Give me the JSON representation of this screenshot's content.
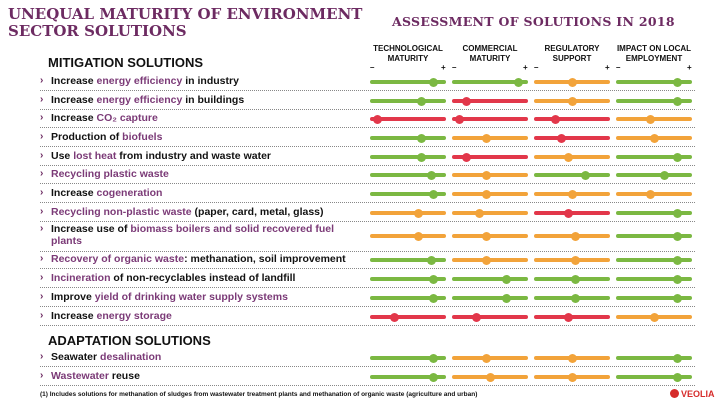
{
  "header": {
    "title": "UNEQUAL MATURITY OF ENVIRONMENT SECTOR SOLUTIONS",
    "assessment": "ASSESSMENT OF SOLUTIONS IN 2018"
  },
  "columns": [
    {
      "label": "TECHNOLOGICAL MATURITY"
    },
    {
      "label": "COMMERCIAL MATURITY"
    },
    {
      "label": "REGULATORY SUPPORT"
    },
    {
      "label": "IMPACT ON LOCAL EMPLOYMENT"
    }
  ],
  "scale": {
    "minus": "–",
    "plus": "+"
  },
  "colors": {
    "green": "#7bb842",
    "orange": "#f2a33a",
    "red": "#e2374a",
    "purple": "#6d2b62"
  },
  "mitigation": {
    "title": "MITIGATION SOLUTIONS",
    "rows": [
      {
        "pre": "Increase ",
        "hl": "energy efficiency",
        "post": " in industry",
        "ratings": [
          [
            "green",
            0.88
          ],
          [
            "green",
            0.92
          ],
          [
            "orange",
            0.5
          ],
          [
            "green",
            0.85
          ]
        ]
      },
      {
        "pre": "Increase ",
        "hl": "energy efficiency",
        "post": " in buildings",
        "ratings": [
          [
            "green",
            0.7
          ],
          [
            "red",
            0.15
          ],
          [
            "orange",
            0.5
          ],
          [
            "green",
            0.85
          ]
        ]
      },
      {
        "pre": "Increase ",
        "hl": "CO₂ capture",
        "post": "",
        "ratings": [
          [
            "red",
            0.05
          ],
          [
            "red",
            0.05
          ],
          [
            "red",
            0.25
          ],
          [
            "orange",
            0.45
          ]
        ]
      },
      {
        "pre": "Production of ",
        "hl": "biofuels",
        "post": "",
        "ratings": [
          [
            "green",
            0.7
          ],
          [
            "orange",
            0.45
          ],
          [
            "red",
            0.35
          ],
          [
            "orange",
            0.5
          ]
        ]
      },
      {
        "pre": "Use ",
        "hl": "lost heat",
        "post": " from industry and waste water",
        "ratings": [
          [
            "green",
            0.7
          ],
          [
            "red",
            0.15
          ],
          [
            "orange",
            0.45
          ],
          [
            "green",
            0.85
          ]
        ]
      },
      {
        "pre": "",
        "hl": "Recycling plastic waste",
        "post": "",
        "ratings": [
          [
            "green",
            0.85
          ],
          [
            "orange",
            0.45
          ],
          [
            "green",
            0.7
          ],
          [
            "green",
            0.65
          ]
        ]
      },
      {
        "pre": "Increase ",
        "hl": "cogeneration",
        "post": "",
        "ratings": [
          [
            "green",
            0.88
          ],
          [
            "orange",
            0.45
          ],
          [
            "orange",
            0.5
          ],
          [
            "orange",
            0.45
          ]
        ]
      },
      {
        "pre": "",
        "hl": "Recycling non-plastic waste",
        "post": " (paper, card, metal, glass)",
        "ratings": [
          [
            "orange",
            0.65
          ],
          [
            "orange",
            0.35
          ],
          [
            "red",
            0.45
          ],
          [
            "green",
            0.85
          ]
        ]
      },
      {
        "pre": "Increase use of ",
        "hl": "biomass boilers and solid recovered fuel plants",
        "post": "",
        "ratings": [
          [
            "orange",
            0.65
          ],
          [
            "orange",
            0.45
          ],
          [
            "orange",
            0.55
          ],
          [
            "green",
            0.85
          ]
        ]
      },
      {
        "pre": "",
        "hl": "Recovery of organic waste",
        "post": ": methanation, soil improvement",
        "ratings": [
          [
            "green",
            0.85
          ],
          [
            "orange",
            0.45
          ],
          [
            "orange",
            0.55
          ],
          [
            "green",
            0.85
          ]
        ]
      },
      {
        "pre": "",
        "hl": "Incineration",
        "post": " of non-recyclables instead of landfill",
        "ratings": [
          [
            "green",
            0.88
          ],
          [
            "green",
            0.75
          ],
          [
            "green",
            0.55
          ],
          [
            "green",
            0.85
          ]
        ]
      },
      {
        "pre": "Improve ",
        "hl": "yield of drinking water supply systems",
        "post": "",
        "ratings": [
          [
            "green",
            0.88
          ],
          [
            "green",
            0.75
          ],
          [
            "green",
            0.55
          ],
          [
            "green",
            0.85
          ]
        ]
      },
      {
        "pre": "Increase ",
        "hl": "energy storage",
        "post": "",
        "ratings": [
          [
            "red",
            0.3
          ],
          [
            "red",
            0.3
          ],
          [
            "red",
            0.45
          ],
          [
            "orange",
            0.5
          ]
        ]
      }
    ]
  },
  "adaptation": {
    "title": "ADAPTATION SOLUTIONS",
    "rows": [
      {
        "pre": "Seawater ",
        "hl": "desalination",
        "post": "",
        "ratings": [
          [
            "green",
            0.88
          ],
          [
            "orange",
            0.45
          ],
          [
            "orange",
            0.5
          ],
          [
            "green",
            0.85
          ]
        ]
      },
      {
        "pre": "",
        "hl": "Wastewater",
        "post": " reuse",
        "ratings": [
          [
            "green",
            0.88
          ],
          [
            "orange",
            0.5
          ],
          [
            "orange",
            0.5
          ],
          [
            "green",
            0.85
          ]
        ]
      }
    ]
  },
  "footnote": "(1) Includes solutions for methanation of sludges from wastewater treatment plants and methanation of organic waste (agriculture and urban)",
  "brand": "VEOLIA"
}
